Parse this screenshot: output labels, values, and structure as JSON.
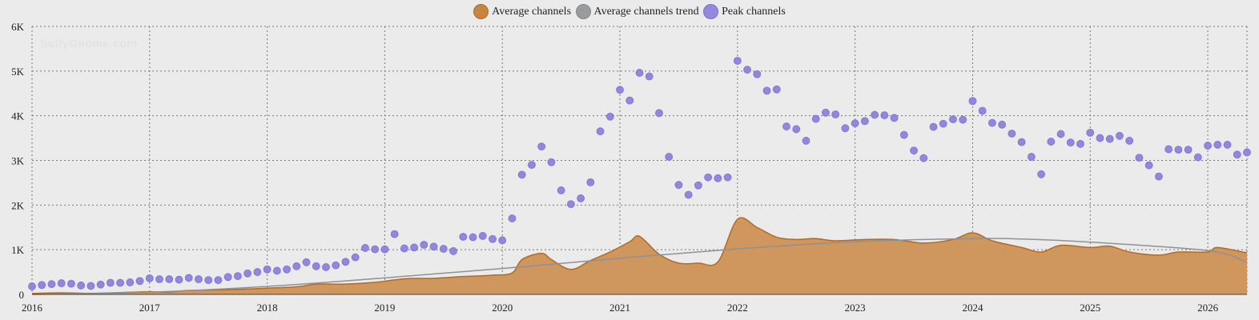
{
  "watermark": "SullyGnome.com",
  "legend": [
    {
      "label": "Average channels",
      "color": "#c8853f",
      "border": "#b06a28"
    },
    {
      "label": "Average channels trend",
      "color": "#9a9ba0",
      "border": "#86878c"
    },
    {
      "label": "Peak channels",
      "color": "#9288e0",
      "border": "#7b70d4"
    }
  ],
  "chart_data": {
    "type": "area",
    "title": "",
    "xlabel": "",
    "ylabel": "",
    "x_range": [
      "2016-01",
      "2026-05"
    ],
    "ylim": [
      0,
      6000
    ],
    "y_ticks": [
      0,
      1000,
      2000,
      3000,
      4000,
      5000,
      6000
    ],
    "y_tick_labels": [
      "0",
      "1K",
      "2K",
      "3K",
      "4K",
      "5K",
      "6K"
    ],
    "x_ticks": [
      "2016",
      "2017",
      "2018",
      "2019",
      "2020",
      "2021",
      "2022",
      "2023",
      "2024",
      "2025",
      "2026"
    ],
    "grid": true,
    "legend_position": "top-center",
    "series": [
      {
        "name": "Average channels",
        "type": "area",
        "color": "#c8853f",
        "points": [
          [
            "2016-01",
            20
          ],
          [
            "2016-04",
            35
          ],
          [
            "2016-07",
            25
          ],
          [
            "2016-10",
            40
          ],
          [
            "2017-01",
            60
          ],
          [
            "2017-03",
            50
          ],
          [
            "2017-05",
            90
          ],
          [
            "2017-08",
            100
          ],
          [
            "2017-11",
            120
          ],
          [
            "2018-01",
            140
          ],
          [
            "2018-04",
            170
          ],
          [
            "2018-06",
            230
          ],
          [
            "2018-09",
            230
          ],
          [
            "2018-12",
            270
          ],
          [
            "2019-03",
            350
          ],
          [
            "2019-06",
            360
          ],
          [
            "2019-09",
            400
          ],
          [
            "2019-12",
            430
          ],
          [
            "2020-02",
            480
          ],
          [
            "2020-03",
            780
          ],
          [
            "2020-05",
            920
          ],
          [
            "2020-06",
            780
          ],
          [
            "2020-08",
            560
          ],
          [
            "2020-10",
            760
          ],
          [
            "2020-12",
            950
          ],
          [
            "2021-02",
            1180
          ],
          [
            "2021-03",
            1300
          ],
          [
            "2021-05",
            900
          ],
          [
            "2021-07",
            700
          ],
          [
            "2021-09",
            700
          ],
          [
            "2021-11",
            730
          ],
          [
            "2022-01",
            1680
          ],
          [
            "2022-03",
            1500
          ],
          [
            "2022-05",
            1280
          ],
          [
            "2022-07",
            1230
          ],
          [
            "2022-09",
            1250
          ],
          [
            "2022-11",
            1200
          ],
          [
            "2023-02",
            1230
          ],
          [
            "2023-05",
            1230
          ],
          [
            "2023-08",
            1150
          ],
          [
            "2023-11",
            1230
          ],
          [
            "2024-01",
            1380
          ],
          [
            "2024-03",
            1200
          ],
          [
            "2024-06",
            1050
          ],
          [
            "2024-08",
            950
          ],
          [
            "2024-10",
            1100
          ],
          [
            "2025-01",
            1050
          ],
          [
            "2025-03",
            1080
          ],
          [
            "2025-05",
            950
          ],
          [
            "2025-08",
            880
          ],
          [
            "2025-10",
            950
          ],
          [
            "2026-01",
            950
          ],
          [
            "2026-02",
            1050
          ],
          [
            "2026-05",
            930
          ]
        ]
      },
      {
        "name": "Average channels trend",
        "type": "line",
        "color": "#909196",
        "points": [
          [
            "2016-01",
            0
          ],
          [
            "2017-01",
            50
          ],
          [
            "2018-01",
            180
          ],
          [
            "2019-01",
            370
          ],
          [
            "2020-01",
            580
          ],
          [
            "2021-01",
            810
          ],
          [
            "2022-01",
            1020
          ],
          [
            "2023-01",
            1180
          ],
          [
            "2024-01",
            1250
          ],
          [
            "2024-06",
            1240
          ],
          [
            "2025-01",
            1170
          ],
          [
            "2026-01",
            980
          ],
          [
            "2026-05",
            720
          ]
        ]
      },
      {
        "name": "Peak channels",
        "type": "scatter",
        "color": "#8c82dc",
        "points": [
          [
            "2016-01",
            180
          ],
          [
            "2016-02",
            210
          ],
          [
            "2016-03",
            230
          ],
          [
            "2016-04",
            250
          ],
          [
            "2016-05",
            240
          ],
          [
            "2016-06",
            200
          ],
          [
            "2016-07",
            190
          ],
          [
            "2016-08",
            220
          ],
          [
            "2016-09",
            260
          ],
          [
            "2016-10",
            260
          ],
          [
            "2016-11",
            270
          ],
          [
            "2016-12",
            300
          ],
          [
            "2017-01",
            360
          ],
          [
            "2017-02",
            340
          ],
          [
            "2017-03",
            340
          ],
          [
            "2017-04",
            330
          ],
          [
            "2017-05",
            370
          ],
          [
            "2017-06",
            340
          ],
          [
            "2017-07",
            320
          ],
          [
            "2017-08",
            320
          ],
          [
            "2017-09",
            390
          ],
          [
            "2017-10",
            410
          ],
          [
            "2017-11",
            470
          ],
          [
            "2017-12",
            500
          ],
          [
            "2018-01",
            560
          ],
          [
            "2018-02",
            530
          ],
          [
            "2018-03",
            560
          ],
          [
            "2018-04",
            630
          ],
          [
            "2018-05",
            720
          ],
          [
            "2018-06",
            630
          ],
          [
            "2018-07",
            610
          ],
          [
            "2018-08",
            650
          ],
          [
            "2018-09",
            730
          ],
          [
            "2018-10",
            830
          ],
          [
            "2018-11",
            1040
          ],
          [
            "2018-12",
            1010
          ],
          [
            "2019-01",
            1010
          ],
          [
            "2019-02",
            1350
          ],
          [
            "2019-03",
            1030
          ],
          [
            "2019-04",
            1050
          ],
          [
            "2019-05",
            1110
          ],
          [
            "2019-06",
            1070
          ],
          [
            "2019-07",
            1020
          ],
          [
            "2019-08",
            970
          ],
          [
            "2019-09",
            1290
          ],
          [
            "2019-10",
            1280
          ],
          [
            "2019-11",
            1310
          ],
          [
            "2019-12",
            1240
          ],
          [
            "2020-01",
            1210
          ],
          [
            "2020-02",
            1700
          ],
          [
            "2020-03",
            2680
          ],
          [
            "2020-04",
            2900
          ],
          [
            "2020-05",
            3310
          ],
          [
            "2020-06",
            2960
          ],
          [
            "2020-07",
            2330
          ],
          [
            "2020-08",
            2020
          ],
          [
            "2020-09",
            2150
          ],
          [
            "2020-10",
            2510
          ],
          [
            "2020-11",
            3650
          ],
          [
            "2020-12",
            3980
          ],
          [
            "2021-01",
            4580
          ],
          [
            "2021-02",
            4340
          ],
          [
            "2021-03",
            4960
          ],
          [
            "2021-04",
            4880
          ],
          [
            "2021-05",
            4060
          ],
          [
            "2021-06",
            3080
          ],
          [
            "2021-07",
            2450
          ],
          [
            "2021-08",
            2230
          ],
          [
            "2021-09",
            2440
          ],
          [
            "2021-10",
            2620
          ],
          [
            "2021-11",
            2600
          ],
          [
            "2021-12",
            2620
          ],
          [
            "2022-01",
            5230
          ],
          [
            "2022-02",
            5030
          ],
          [
            "2022-03",
            4930
          ],
          [
            "2022-04",
            4560
          ],
          [
            "2022-05",
            4590
          ],
          [
            "2022-06",
            3760
          ],
          [
            "2022-07",
            3700
          ],
          [
            "2022-08",
            3440
          ],
          [
            "2022-09",
            3930
          ],
          [
            "2022-10",
            4070
          ],
          [
            "2022-11",
            4030
          ],
          [
            "2022-12",
            3720
          ],
          [
            "2023-01",
            3830
          ],
          [
            "2023-02",
            3880
          ],
          [
            "2023-03",
            4020
          ],
          [
            "2023-04",
            4010
          ],
          [
            "2023-05",
            3950
          ],
          [
            "2023-06",
            3570
          ],
          [
            "2023-07",
            3220
          ],
          [
            "2023-08",
            3050
          ],
          [
            "2023-09",
            3750
          ],
          [
            "2023-10",
            3820
          ],
          [
            "2023-11",
            3920
          ],
          [
            "2023-12",
            3910
          ],
          [
            "2024-01",
            4330
          ],
          [
            "2024-02",
            4110
          ],
          [
            "2024-03",
            3840
          ],
          [
            "2024-04",
            3800
          ],
          [
            "2024-05",
            3600
          ],
          [
            "2024-06",
            3410
          ],
          [
            "2024-07",
            3080
          ],
          [
            "2024-08",
            2690
          ],
          [
            "2024-09",
            3420
          ],
          [
            "2024-10",
            3590
          ],
          [
            "2024-11",
            3400
          ],
          [
            "2024-12",
            3370
          ],
          [
            "2025-01",
            3620
          ],
          [
            "2025-02",
            3500
          ],
          [
            "2025-03",
            3480
          ],
          [
            "2025-04",
            3550
          ],
          [
            "2025-05",
            3440
          ],
          [
            "2025-06",
            3060
          ],
          [
            "2025-07",
            2890
          ],
          [
            "2025-08",
            2640
          ],
          [
            "2025-09",
            3250
          ],
          [
            "2025-10",
            3240
          ],
          [
            "2025-11",
            3240
          ],
          [
            "2025-12",
            3070
          ],
          [
            "2026-01",
            3330
          ],
          [
            "2026-02",
            3350
          ],
          [
            "2026-03",
            3350
          ],
          [
            "2026-04",
            3130
          ],
          [
            "2026-05",
            3180
          ]
        ]
      }
    ]
  }
}
